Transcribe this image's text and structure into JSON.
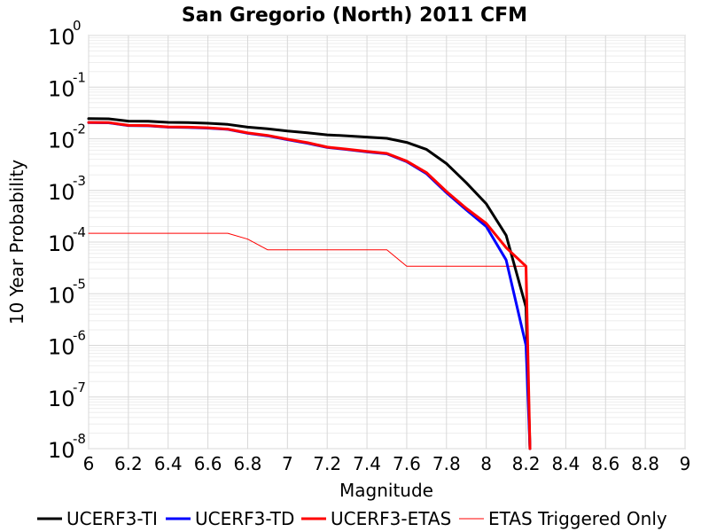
{
  "chart_data": {
    "type": "line",
    "title": "San Gregorio (North) 2011 CFM",
    "xlabel": "Magnitude",
    "ylabel": "10 Year Probability",
    "xlim": [
      6,
      9
    ],
    "ylim": [
      1e-08,
      1
    ],
    "yscale": "log",
    "grid": true,
    "legend_position": "bottom",
    "x_ticks": [
      "6",
      "6.2",
      "6.4",
      "6.6",
      "6.8",
      "7",
      "7.2",
      "7.4",
      "7.6",
      "7.8",
      "8",
      "8.2",
      "8.4",
      "8.6",
      "8.8",
      "9"
    ],
    "y_ticks": [
      {
        "base": "10",
        "exp": "0"
      },
      {
        "base": "10",
        "exp": "-1"
      },
      {
        "base": "10",
        "exp": "-2"
      },
      {
        "base": "10",
        "exp": "-3"
      },
      {
        "base": "10",
        "exp": "-4"
      },
      {
        "base": "10",
        "exp": "-5"
      },
      {
        "base": "10",
        "exp": "-6"
      },
      {
        "base": "10",
        "exp": "-7"
      },
      {
        "base": "10",
        "exp": "-8"
      }
    ],
    "series": [
      {
        "name": "UCERF3-TI",
        "color": "#000000",
        "line_width": 3,
        "x": [
          6.0,
          6.1,
          6.2,
          6.3,
          6.4,
          6.5,
          6.6,
          6.7,
          6.8,
          6.9,
          7.0,
          7.1,
          7.2,
          7.3,
          7.4,
          7.5,
          7.6,
          7.7,
          7.8,
          7.9,
          8.0,
          8.1,
          8.2,
          8.22
        ],
        "y": [
          0.0245,
          0.0243,
          0.022,
          0.0218,
          0.0208,
          0.0206,
          0.02,
          0.019,
          0.0168,
          0.0156,
          0.0141,
          0.0131,
          0.0119,
          0.0114,
          0.0108,
          0.0102,
          0.0085,
          0.0062,
          0.0033,
          0.0014,
          0.00055,
          0.000135,
          5.5e-06,
          1e-08
        ]
      },
      {
        "name": "UCERF3-TD",
        "color": "#0000ff",
        "line_width": 3,
        "x": [
          6.0,
          6.1,
          6.2,
          6.3,
          6.4,
          6.5,
          6.6,
          6.7,
          6.8,
          6.9,
          7.0,
          7.1,
          7.2,
          7.3,
          7.4,
          7.5,
          7.6,
          7.7,
          7.8,
          7.9,
          8.0,
          8.1,
          8.2,
          8.22
        ],
        "y": [
          0.0205,
          0.0204,
          0.018,
          0.0178,
          0.0168,
          0.0166,
          0.0161,
          0.0152,
          0.0128,
          0.0114,
          0.0096,
          0.0082,
          0.0068,
          0.0062,
          0.0056,
          0.0051,
          0.0036,
          0.0021,
          0.0009,
          0.00042,
          0.0002,
          4.5e-05,
          1e-06,
          1e-08
        ]
      },
      {
        "name": "UCERF3-ETAS",
        "color": "#ff0000",
        "line_width": 3,
        "x": [
          6.0,
          6.1,
          6.2,
          6.3,
          6.4,
          6.5,
          6.6,
          6.7,
          6.8,
          6.9,
          7.0,
          7.1,
          7.2,
          7.3,
          7.4,
          7.5,
          7.6,
          7.7,
          7.8,
          7.9,
          8.0,
          8.1,
          8.2,
          8.22
        ],
        "y": [
          0.0207,
          0.0206,
          0.0182,
          0.018,
          0.017,
          0.0168,
          0.0163,
          0.0154,
          0.013,
          0.0116,
          0.0098,
          0.0084,
          0.0069,
          0.0063,
          0.0057,
          0.0052,
          0.0037,
          0.0022,
          0.00095,
          0.00045,
          0.00023,
          7.8e-05,
          3.4e-05,
          1e-08
        ]
      },
      {
        "name": "ETAS Triggered Only",
        "color": "#ff0000",
        "line_width": 1,
        "x": [
          6.0,
          6.1,
          6.2,
          6.3,
          6.4,
          6.5,
          6.6,
          6.7,
          6.8,
          6.9,
          7.0,
          7.1,
          7.2,
          7.3,
          7.4,
          7.5,
          7.6,
          7.7,
          7.8,
          7.9,
          8.0,
          8.1,
          8.2
        ],
        "y": [
          0.000148,
          0.000148,
          0.000148,
          0.000148,
          0.000148,
          0.000148,
          0.000148,
          0.000148,
          0.000114,
          7.1e-05,
          7.1e-05,
          7.1e-05,
          7.1e-05,
          7.1e-05,
          7.1e-05,
          7.1e-05,
          3.4e-05,
          3.4e-05,
          3.4e-05,
          3.4e-05,
          3.4e-05,
          3.4e-05,
          3.4e-05
        ]
      }
    ]
  }
}
